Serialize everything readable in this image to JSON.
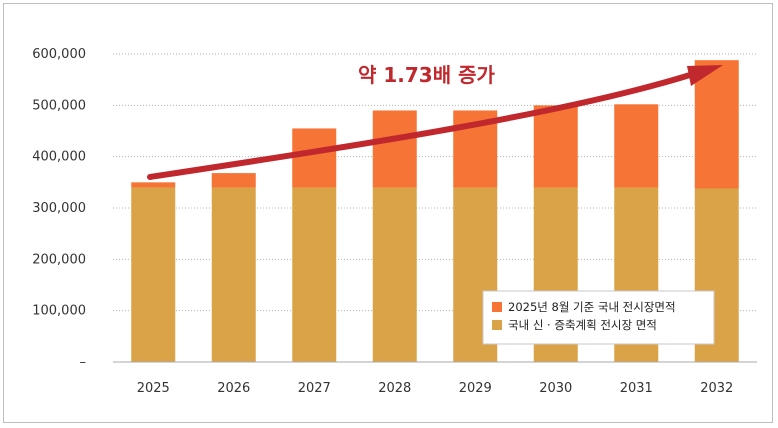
{
  "chart_data": {
    "type": "bar",
    "stacked": true,
    "categories": [
      "2025",
      "2026",
      "2027",
      "2028",
      "2029",
      "2030",
      "2031",
      "2032"
    ],
    "series": [
      {
        "name": "국내 신 · 증축계획 전시장 면적",
        "color": "#dba347",
        "values": [
          340000,
          340000,
          340000,
          340000,
          340000,
          340000,
          340000,
          338000
        ]
      },
      {
        "name": "2025년 8월 기준 국내 전시장면적",
        "color": "#f57436",
        "values": [
          10000,
          28000,
          115000,
          150000,
          150000,
          160000,
          162000,
          250000
        ]
      }
    ],
    "ylim": [
      0,
      600000
    ],
    "yticks": [
      0,
      100000,
      200000,
      300000,
      400000,
      500000,
      600000
    ],
    "ytick_labels": [
      "–",
      "100,000",
      "200,000",
      "300,000",
      "400,000",
      "500,000",
      "600,000"
    ],
    "annotation": {
      "text": "약 1.73배 증가",
      "color": "#c0282d"
    },
    "grid": true,
    "legend_position": "bottom-right"
  }
}
